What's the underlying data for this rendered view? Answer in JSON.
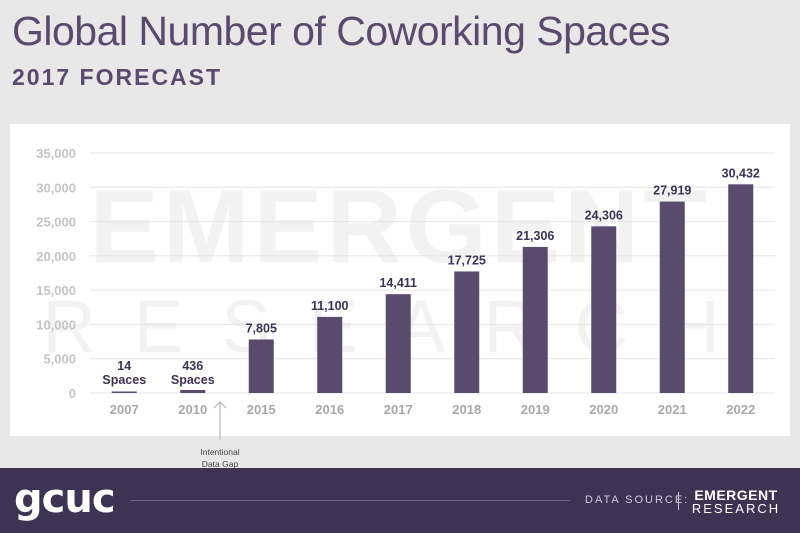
{
  "header": {
    "title": "Global Number of Coworking Spaces",
    "subtitle": "2017 FORECAST"
  },
  "watermark": {
    "line1": "EMERGENT",
    "line2": "RESEARCH"
  },
  "annotation": {
    "gap_line1": "Intentional",
    "gap_line2": "Data Gap",
    "arrow_icon": "up-arrow-icon"
  },
  "footer": {
    "logo_text": "gcuc",
    "source_label": "DATA SOURCE:",
    "brand_top": "EMERGENT",
    "brand_bottom": "RESEARCH"
  },
  "colors": {
    "bar": "#5a4a6e",
    "header_text": "#5a4a6e",
    "footer_bg": "#3d3352",
    "page_bg": "#e8e8e8"
  },
  "chart_data": {
    "type": "bar",
    "title": "Global Number of Coworking Spaces",
    "subtitle": "2017 FORECAST",
    "xlabel": "",
    "ylabel": "",
    "ylim": [
      0,
      35000
    ],
    "yticks": [
      0,
      5000,
      10000,
      15000,
      20000,
      25000,
      30000,
      35000
    ],
    "ytick_labels": [
      "0",
      "5,000",
      "10,000",
      "15,000",
      "20,000",
      "25,000",
      "30,000",
      "35,000"
    ],
    "categories": [
      "2007",
      "2010",
      "2015",
      "2016",
      "2017",
      "2018",
      "2019",
      "2020",
      "2021",
      "2022"
    ],
    "values": [
      14,
      436,
      7805,
      11100,
      14411,
      17725,
      21306,
      24306,
      27919,
      30432
    ],
    "data_labels": [
      "14",
      "436",
      "7,805",
      "11,100",
      "14,411",
      "17,725",
      "21,306",
      "24,306",
      "27,919",
      "30,432"
    ],
    "label_suffix": [
      "Spaces",
      "Spaces",
      "",
      "",
      "",
      "",
      "",
      "",
      "",
      ""
    ],
    "grid": true,
    "legend": "none"
  }
}
